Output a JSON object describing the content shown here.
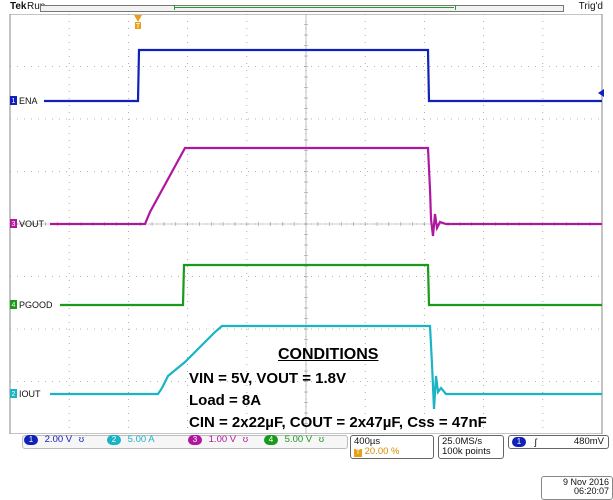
{
  "status_bar": {
    "brand": "Tek",
    "acq_state": "Run",
    "trigger_state": "Trig'd"
  },
  "markers": {
    "trigger_position": "T",
    "cursor_position": "T"
  },
  "channels": [
    {
      "id": "1",
      "name": "ENA",
      "color": "#1020b8",
      "scale": "2.00 V",
      "coupling": "ʊ"
    },
    {
      "id": "3",
      "name": "VOUT",
      "color": "#b0179f",
      "scale": "1.00 V",
      "coupling": "ʊ"
    },
    {
      "id": "4",
      "name": "PGOOD",
      "color": "#1a9a1a",
      "scale": "5.00 V",
      "coupling": "ʊ"
    },
    {
      "id": "2",
      "name": "IOUT",
      "color": "#1ab4c4",
      "scale": "5.00 A",
      "coupling": "ʊ"
    }
  ],
  "conditions": {
    "heading": "CONDITIONS",
    "lines": [
      "VIN = 5V, VOUT = 1.8V",
      "Load = 8A",
      "CIN = 2x22µF, COUT = 2x47µF, Css = 47nF"
    ]
  },
  "timebase": {
    "scale": "400µs",
    "position": "20.00 %"
  },
  "acquisition": {
    "sample_rate": "25.0MS/s",
    "record_length": "100k points"
  },
  "trigger": {
    "source": "1",
    "slope": "ʃ",
    "level": "480mV"
  },
  "datetime": {
    "date": "9 Nov 2016",
    "time": "06:20:07"
  }
}
